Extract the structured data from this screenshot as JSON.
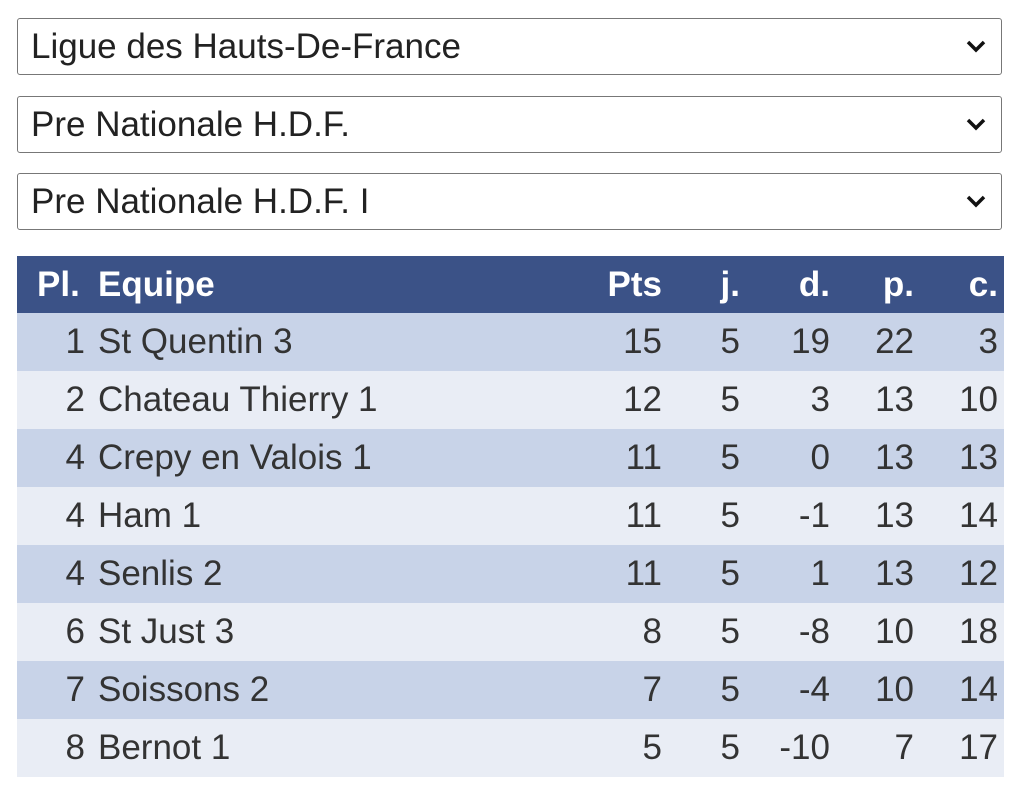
{
  "selects": [
    {
      "value": "Ligue des Hauts-De-France"
    },
    {
      "value": "Pre Nationale H.D.F."
    },
    {
      "value": "Pre Nationale H.D.F. I"
    }
  ],
  "colors": {
    "header": "#3b5287",
    "row_odd": "#c8d3e8",
    "row_even": "#e9edf5"
  },
  "table": {
    "headers": [
      "Pl.",
      "Equipe",
      "Pts",
      "j.",
      "d.",
      "p.",
      "c."
    ],
    "rows": [
      [
        "1",
        "St Quentin 3",
        "15",
        "5",
        "19",
        "22",
        "3"
      ],
      [
        "2",
        "Chateau Thierry 1",
        "12",
        "5",
        "3",
        "13",
        "10"
      ],
      [
        "4",
        "Crepy en Valois 1",
        "11",
        "5",
        "0",
        "13",
        "13"
      ],
      [
        "4",
        "Ham 1",
        "11",
        "5",
        "-1",
        "13",
        "14"
      ],
      [
        "4",
        "Senlis 2",
        "11",
        "5",
        "1",
        "13",
        "12"
      ],
      [
        "6",
        "St Just 3",
        "8",
        "5",
        "-8",
        "10",
        "18"
      ],
      [
        "7",
        "Soissons 2",
        "7",
        "5",
        "-4",
        "10",
        "14"
      ],
      [
        "8",
        "Bernot 1",
        "5",
        "5",
        "-10",
        "7",
        "17"
      ]
    ]
  }
}
